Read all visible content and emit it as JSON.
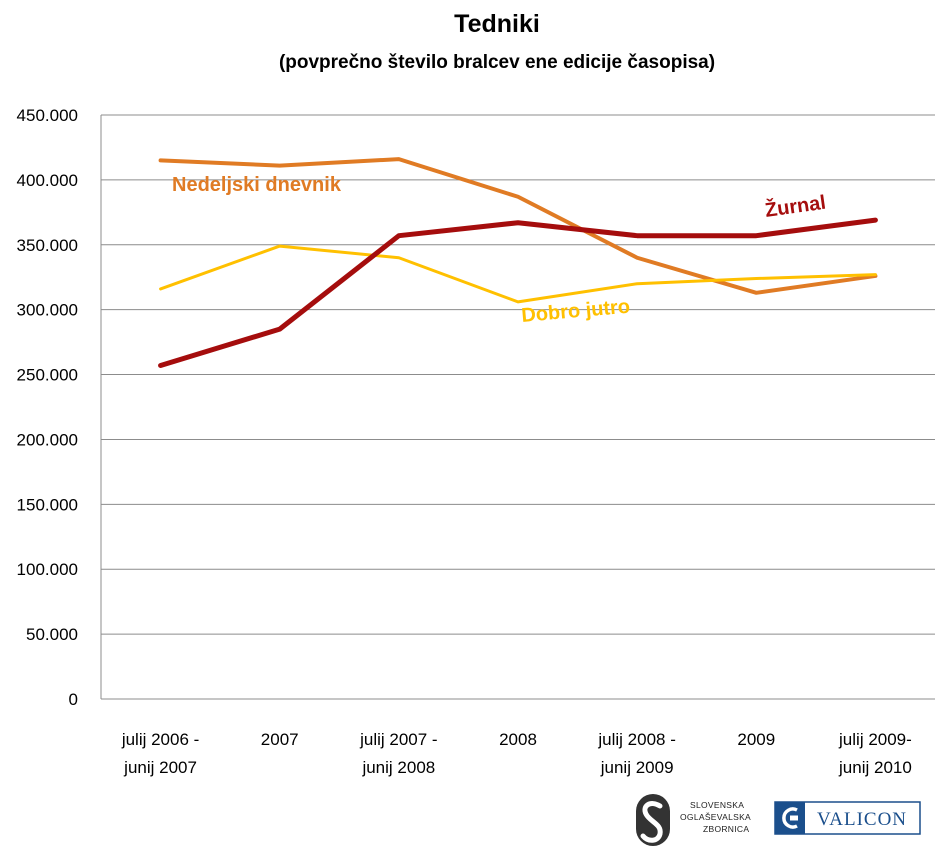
{
  "chart_data": {
    "type": "line",
    "title": "Tedniki",
    "subtitle": "(povprečno število bralcev ene edicije časopisa)",
    "categories": [
      [
        "julij  2006 -",
        "junij 2007"
      ],
      [
        "2007"
      ],
      [
        "julij  2007 -",
        "junij 2008"
      ],
      [
        "2008"
      ],
      [
        "julij  2008 -",
        "junij 2009"
      ],
      [
        "2009"
      ],
      [
        "julij 2009-",
        "junij 2010"
      ]
    ],
    "ylim": [
      0,
      450000
    ],
    "ytick_values": [
      0,
      50000,
      100000,
      150000,
      200000,
      250000,
      300000,
      350000,
      400000,
      450000
    ],
    "ytick_labels": [
      "0",
      "50.000",
      "100.000",
      "150.000",
      "200.000",
      "250.000",
      "300.000",
      "350.000",
      "400.000",
      "450.000"
    ],
    "grid": true,
    "series": [
      {
        "name": "Nedeljski dnevnik",
        "color": "#e07b24",
        "values": [
          415000,
          411000,
          416000,
          387000,
          340000,
          313000,
          326000
        ]
      },
      {
        "name": "Dobro jutro",
        "color": "#ffc000",
        "values": [
          316000,
          349000,
          340000,
          306000,
          320000,
          324000,
          327000
        ]
      },
      {
        "name": "Žurnal",
        "color": "#a50d0d",
        "values": [
          257000,
          285000,
          357000,
          367000,
          357000,
          357000,
          369000
        ]
      }
    ]
  },
  "logos": {
    "soz_lines": [
      "SLOVENSKA",
      "OGLAŠEVALSKA",
      "ZBORNICA"
    ],
    "valicon": "VALICON"
  }
}
